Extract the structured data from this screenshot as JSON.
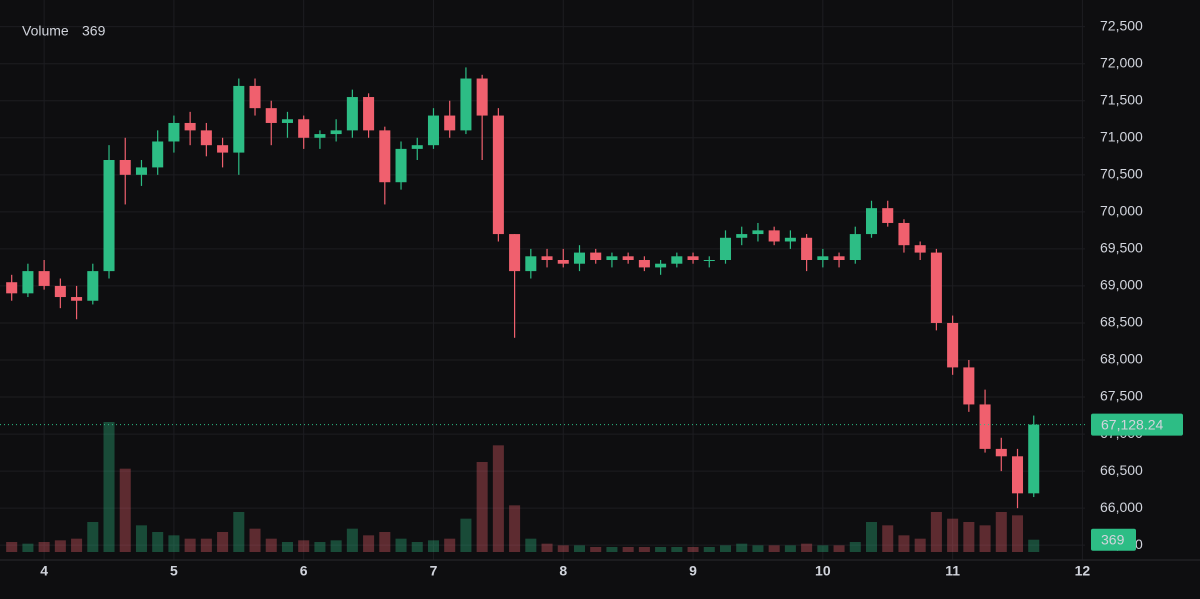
{
  "chart_data": {
    "type": "candlestick",
    "x": [
      3.75,
      3.875,
      4,
      4.125,
      4.25,
      4.375,
      4.5,
      4.625,
      4.75,
      4.875,
      5,
      5.125,
      5.25,
      5.375,
      5.5,
      5.625,
      5.75,
      5.875,
      6,
      6.125,
      6.25,
      6.375,
      6.5,
      6.625,
      6.75,
      6.875,
      7,
      7.125,
      7.25,
      7.375,
      7.5,
      7.625,
      7.75,
      7.875,
      8,
      8.125,
      8.25,
      8.375,
      8.5,
      8.625,
      8.75,
      8.875,
      9,
      9.125,
      9.25,
      9.375,
      9.5,
      9.625,
      9.75,
      9.875,
      10,
      10.125,
      10.25,
      10.375,
      10.5,
      10.625,
      10.75,
      10.875,
      11,
      11.125,
      11.25,
      11.375,
      11.5,
      11.625
    ],
    "open": [
      69050,
      68900,
      69200,
      69000,
      68850,
      68800,
      69200,
      70700,
      70500,
      70600,
      70950,
      71200,
      71100,
      70900,
      70800,
      71700,
      71400,
      71200,
      71250,
      71000,
      71050,
      71100,
      71550,
      71100,
      70400,
      70850,
      70900,
      71300,
      71100,
      71800,
      71300,
      69700,
      69200,
      69400,
      69350,
      69300,
      69450,
      69350,
      69400,
      69350,
      69250,
      69300,
      69400,
      69350,
      69350,
      69650,
      69700,
      69750,
      69600,
      69650,
      69350,
      69400,
      69350,
      69700,
      70050,
      69850,
      69550,
      69450,
      68500,
      67900,
      67400,
      66800,
      66700,
      66200
    ],
    "high": [
      69150,
      69300,
      69350,
      69100,
      69000,
      69300,
      70900,
      71000,
      70700,
      71100,
      71300,
      71350,
      71200,
      71000,
      71800,
      71800,
      71500,
      71350,
      71300,
      71100,
      71250,
      71650,
      71600,
      71150,
      70950,
      71000,
      71400,
      71500,
      71950,
      71850,
      71400,
      69700,
      69500,
      69500,
      69500,
      69550,
      69500,
      69450,
      69450,
      69400,
      69350,
      69450,
      69450,
      69400,
      69750,
      69800,
      69850,
      69800,
      69750,
      69700,
      69500,
      69450,
      69800,
      70150,
      70150,
      69900,
      69600,
      69500,
      68600,
      68000,
      67600,
      66950,
      66800,
      67250
    ],
    "low": [
      68800,
      68850,
      68950,
      68700,
      68550,
      68750,
      69100,
      70100,
      70350,
      70500,
      70800,
      70900,
      70750,
      70600,
      70500,
      71300,
      70900,
      71000,
      70850,
      70850,
      70950,
      71000,
      71000,
      70100,
      70300,
      70700,
      70850,
      71000,
      71050,
      70700,
      69600,
      68300,
      69100,
      69250,
      69250,
      69200,
      69300,
      69250,
      69300,
      69200,
      69150,
      69250,
      69300,
      69250,
      69300,
      69550,
      69600,
      69550,
      69500,
      69200,
      69250,
      69250,
      69300,
      69650,
      69800,
      69450,
      69350,
      68400,
      67800,
      67300,
      66750,
      66500,
      66000,
      66150
    ],
    "close": [
      68900,
      69200,
      69000,
      68850,
      68800,
      69200,
      70700,
      70500,
      70600,
      70950,
      71200,
      71100,
      70900,
      70800,
      71700,
      71400,
      71200,
      71250,
      71000,
      71050,
      71100,
      71550,
      71100,
      70400,
      70850,
      70900,
      71300,
      71100,
      71800,
      71300,
      69700,
      69200,
      69400,
      69350,
      69300,
      69450,
      69350,
      69400,
      69350,
      69250,
      69300,
      69400,
      69350,
      69350,
      69650,
      69700,
      69750,
      69600,
      69650,
      69350,
      69400,
      69350,
      69700,
      70050,
      69850,
      69550,
      69450,
      68500,
      67900,
      67400,
      66800,
      66700,
      66200,
      67128.24
    ],
    "volume": {
      "name": "Volume",
      "values": [
        300,
        250,
        300,
        350,
        400,
        900,
        3900,
        2500,
        800,
        600,
        500,
        400,
        400,
        600,
        1200,
        700,
        400,
        300,
        350,
        300,
        350,
        700,
        500,
        600,
        400,
        300,
        350,
        400,
        1000,
        2700,
        3200,
        1400,
        400,
        250,
        200,
        200,
        150,
        150,
        150,
        150,
        150,
        150,
        150,
        150,
        200,
        250,
        200,
        200,
        200,
        250,
        200,
        200,
        300,
        900,
        800,
        500,
        400,
        1200,
        1000,
        900,
        800,
        1200,
        1100,
        369
      ]
    },
    "up_color": "#2dbd85",
    "down_color": "#f0606e",
    "xlim": [
      3.66,
      12.02
    ],
    "xticks": [
      4,
      5,
      6,
      7,
      8,
      9,
      10,
      11,
      12
    ],
    "ylim": [
      65300,
      72860
    ],
    "yticks": [
      {
        "value": 72500,
        "label": "72,500"
      },
      {
        "value": 72000,
        "label": "72,000"
      },
      {
        "value": 71500,
        "label": "71,500"
      },
      {
        "value": 71000,
        "label": "71,000"
      },
      {
        "value": 70500,
        "label": "70,500"
      },
      {
        "value": 70000,
        "label": "70,000"
      },
      {
        "value": 69500,
        "label": "69,500"
      },
      {
        "value": 69000,
        "label": "69,000"
      },
      {
        "value": 68500,
        "label": "68,500"
      },
      {
        "value": 68000,
        "label": "68,000"
      },
      {
        "value": 67500,
        "label": "67,500"
      },
      {
        "value": 67000,
        "label": "67,000"
      },
      {
        "value": 66500,
        "label": "66,500"
      },
      {
        "value": 66000,
        "label": "66,000"
      },
      {
        "value": 65500,
        "label": "65,500"
      }
    ],
    "vlim": [
      0,
      4500
    ],
    "grid": true,
    "price_line": {
      "value": 67128.24,
      "label": "67,128.24"
    }
  }
}
